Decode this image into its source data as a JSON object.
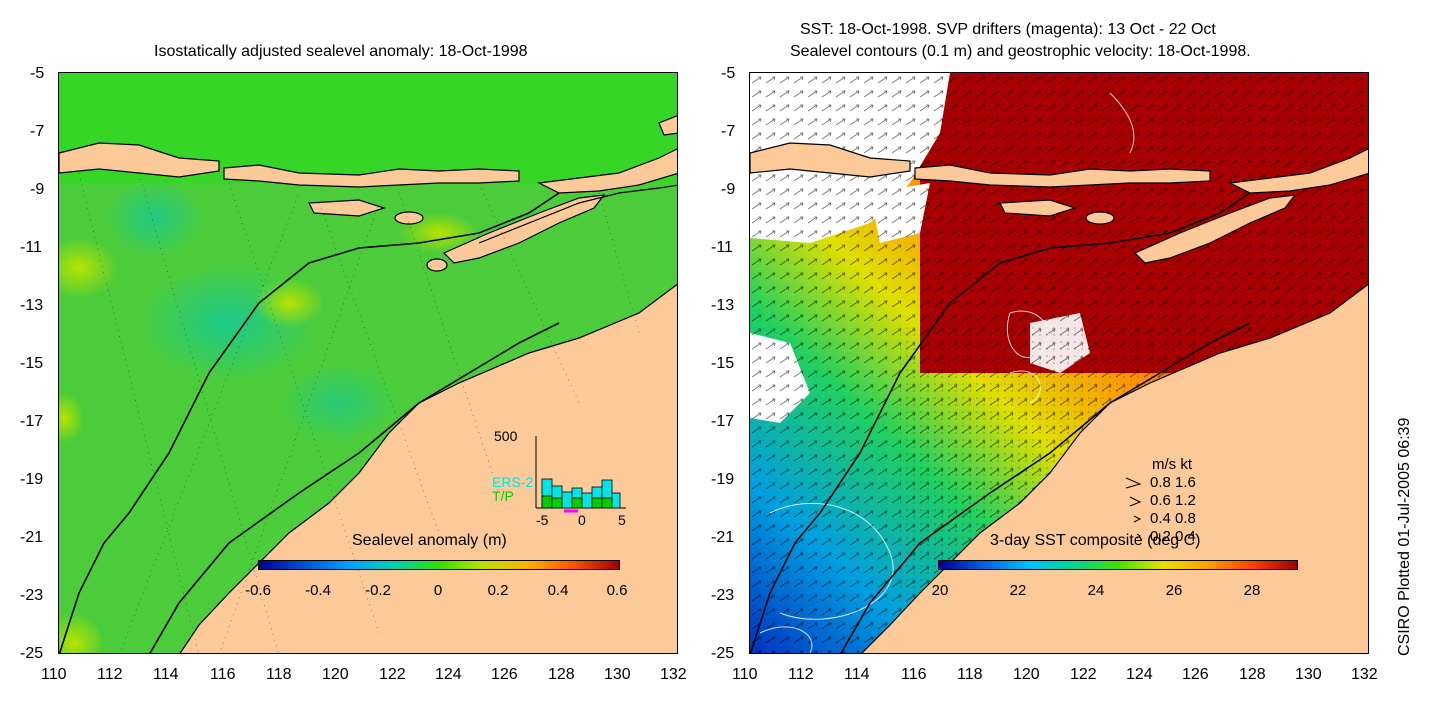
{
  "left_panel": {
    "title": "Isostatically adjusted sealevel anomaly: 18-Oct-1998",
    "colorbar_label": "Sealevel anomaly (m)",
    "colorbar_ticks": [
      "-0.6",
      "-0.4",
      "-0.2",
      "0",
      "0.2",
      "0.4",
      "0.6"
    ],
    "colorbar_colors": [
      "#00008b",
      "#0050d0",
      "#00a0ff",
      "#00d0b0",
      "#30e000",
      "#c0e000",
      "#ffb000",
      "#ff5000",
      "#a00000"
    ],
    "inset": {
      "ymax_label": "500",
      "series": [
        "ERS-2",
        "T/P"
      ],
      "series_colors": [
        "#00e5e5",
        "#00d000"
      ],
      "x_ticks": [
        "-5",
        "0",
        "5"
      ]
    }
  },
  "right_panel": {
    "title_line1": "SST: 18-Oct-1998. SVP drifters (magenta): 13 Oct - 22 Oct",
    "title_line2": "Sealevel contours (0.1 m) and geostrophic velocity: 18-Oct-1998.",
    "colorbar_label": "3-day SST composite (deg C)",
    "colorbar_ticks": [
      "20",
      "22",
      "24",
      "26",
      "28"
    ],
    "colorbar_colors": [
      "#00008b",
      "#0060e0",
      "#00c0ff",
      "#00d890",
      "#40e000",
      "#e8e000",
      "#ffa000",
      "#ff4000",
      "#a00000"
    ],
    "velocity_legend": {
      "header": "m/s  kt",
      "rows": [
        "0.8  1.6",
        "0.6  1.2",
        "0.4  0.8",
        "0.2  0.4"
      ]
    }
  },
  "axes": {
    "y_ticks": [
      "-5",
      "-7",
      "-9",
      "-11",
      "-13",
      "-15",
      "-17",
      "-19",
      "-21",
      "-23",
      "-25"
    ],
    "x_ticks": [
      "110",
      "112",
      "114",
      "116",
      "118",
      "120",
      "122",
      "124",
      "126",
      "128",
      "130",
      "132"
    ]
  },
  "footer_credit": "CSIRO Plotted 01-Jul-2005 06:39",
  "colors": {
    "land": "#fcc999",
    "ocean_left": "#22d818",
    "sst_warm": "#a80000"
  }
}
